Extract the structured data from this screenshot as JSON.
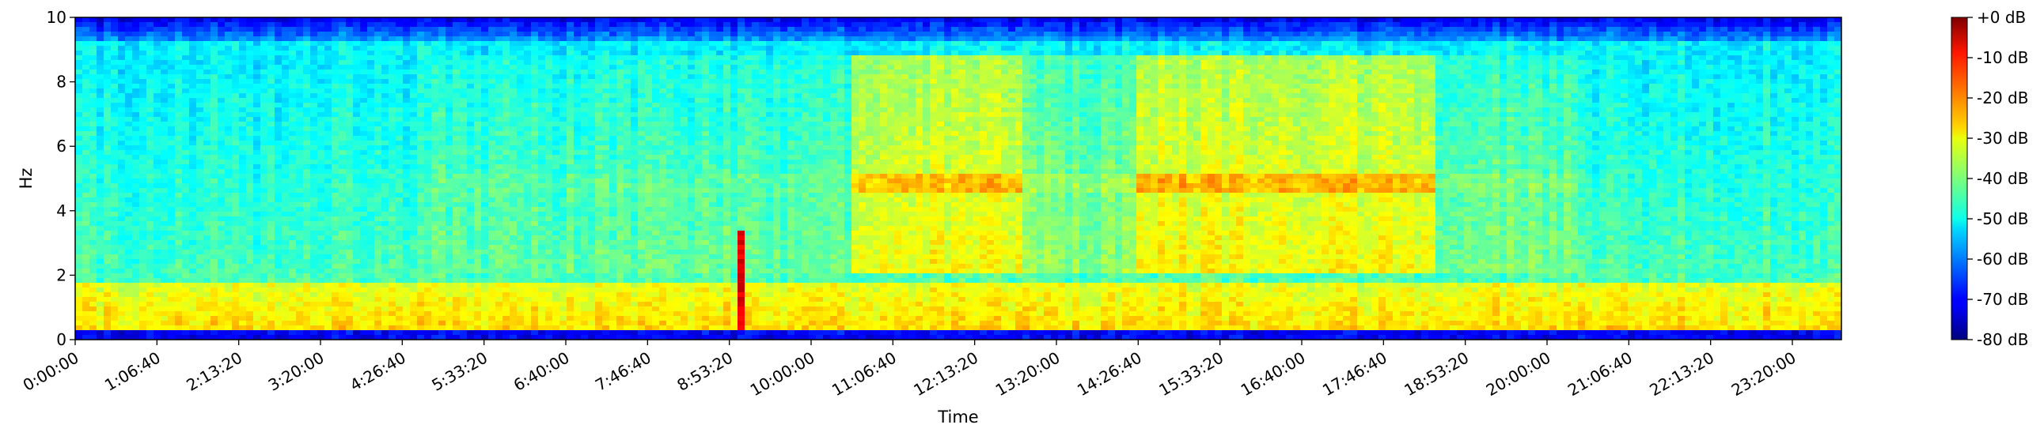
{
  "chart_data": {
    "type": "heatmap",
    "title": "",
    "xlabel": "Time",
    "ylabel": "Hz",
    "x_unit": "seconds",
    "xlim": [
      0,
      86400
    ],
    "ylim": [
      0,
      10
    ],
    "x_ticks": [
      {
        "value": 0,
        "label": "0:00:00"
      },
      {
        "value": 4000,
        "label": "1:06:40"
      },
      {
        "value": 8000,
        "label": "2:13:20"
      },
      {
        "value": 12000,
        "label": "3:20:00"
      },
      {
        "value": 16000,
        "label": "4:26:40"
      },
      {
        "value": 20000,
        "label": "5:33:20"
      },
      {
        "value": 24000,
        "label": "6:40:00"
      },
      {
        "value": 28000,
        "label": "7:46:40"
      },
      {
        "value": 32000,
        "label": "8:53:20"
      },
      {
        "value": 36000,
        "label": "10:00:00"
      },
      {
        "value": 40000,
        "label": "11:06:40"
      },
      {
        "value": 44000,
        "label": "12:13:20"
      },
      {
        "value": 48000,
        "label": "13:20:00"
      },
      {
        "value": 52000,
        "label": "14:26:40"
      },
      {
        "value": 56000,
        "label": "15:33:20"
      },
      {
        "value": 60000,
        "label": "16:40:00"
      },
      {
        "value": 64000,
        "label": "17:46:40"
      },
      {
        "value": 68000,
        "label": "18:53:20"
      },
      {
        "value": 72000,
        "label": "20:00:00"
      },
      {
        "value": 76000,
        "label": "21:06:40"
      },
      {
        "value": 80000,
        "label": "22:13:20"
      },
      {
        "value": 84000,
        "label": "23:20:00"
      }
    ],
    "y_ticks": [
      {
        "value": 0,
        "label": "0"
      },
      {
        "value": 2,
        "label": "2"
      },
      {
        "value": 4,
        "label": "4"
      },
      {
        "value": 6,
        "label": "6"
      },
      {
        "value": 8,
        "label": "8"
      },
      {
        "value": 10,
        "label": "10"
      }
    ],
    "colormap": "jet",
    "colorbar": {
      "min_db": -80,
      "max_db": 0,
      "ticks": [
        {
          "value": 0,
          "label": "+0 dB"
        },
        {
          "value": -10,
          "label": "-10 dB"
        },
        {
          "value": -20,
          "label": "-20 dB"
        },
        {
          "value": -30,
          "label": "-30 dB"
        },
        {
          "value": -40,
          "label": "-40 dB"
        },
        {
          "value": -50,
          "label": "-50 dB"
        },
        {
          "value": -60,
          "label": "-60 dB"
        },
        {
          "value": -70,
          "label": "-70 dB"
        },
        {
          "value": -80,
          "label": "-80 dB"
        }
      ]
    },
    "grid": false
  }
}
